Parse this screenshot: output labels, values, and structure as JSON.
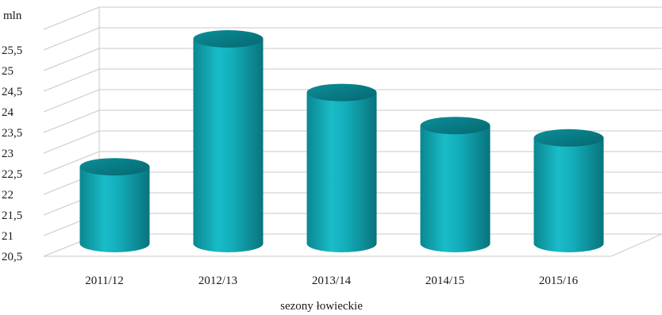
{
  "chart_data": {
    "type": "bar",
    "bar_shape": "3d-cylinder",
    "unit_label": "mln",
    "xlabel": "sezony łowieckie",
    "ylabel": "",
    "categories": [
      "2011/12",
      "2012/13",
      "2013/14",
      "2014/15",
      "2015/16"
    ],
    "values": [
      22.4,
      25.5,
      24.2,
      23.4,
      23.1
    ],
    "ylim": [
      20.5,
      25.5
    ],
    "y_ticks": [
      20.5,
      21,
      21.5,
      22,
      22.5,
      23,
      23.5,
      24,
      24.5,
      25,
      25.5
    ],
    "y_tick_labels": [
      "20,5",
      "21",
      "21,5",
      "22",
      "22,5",
      "23",
      "23,5",
      "24",
      "24,5",
      "25",
      "25,5"
    ],
    "grid": true,
    "bar_color": "#0fa4b0"
  }
}
